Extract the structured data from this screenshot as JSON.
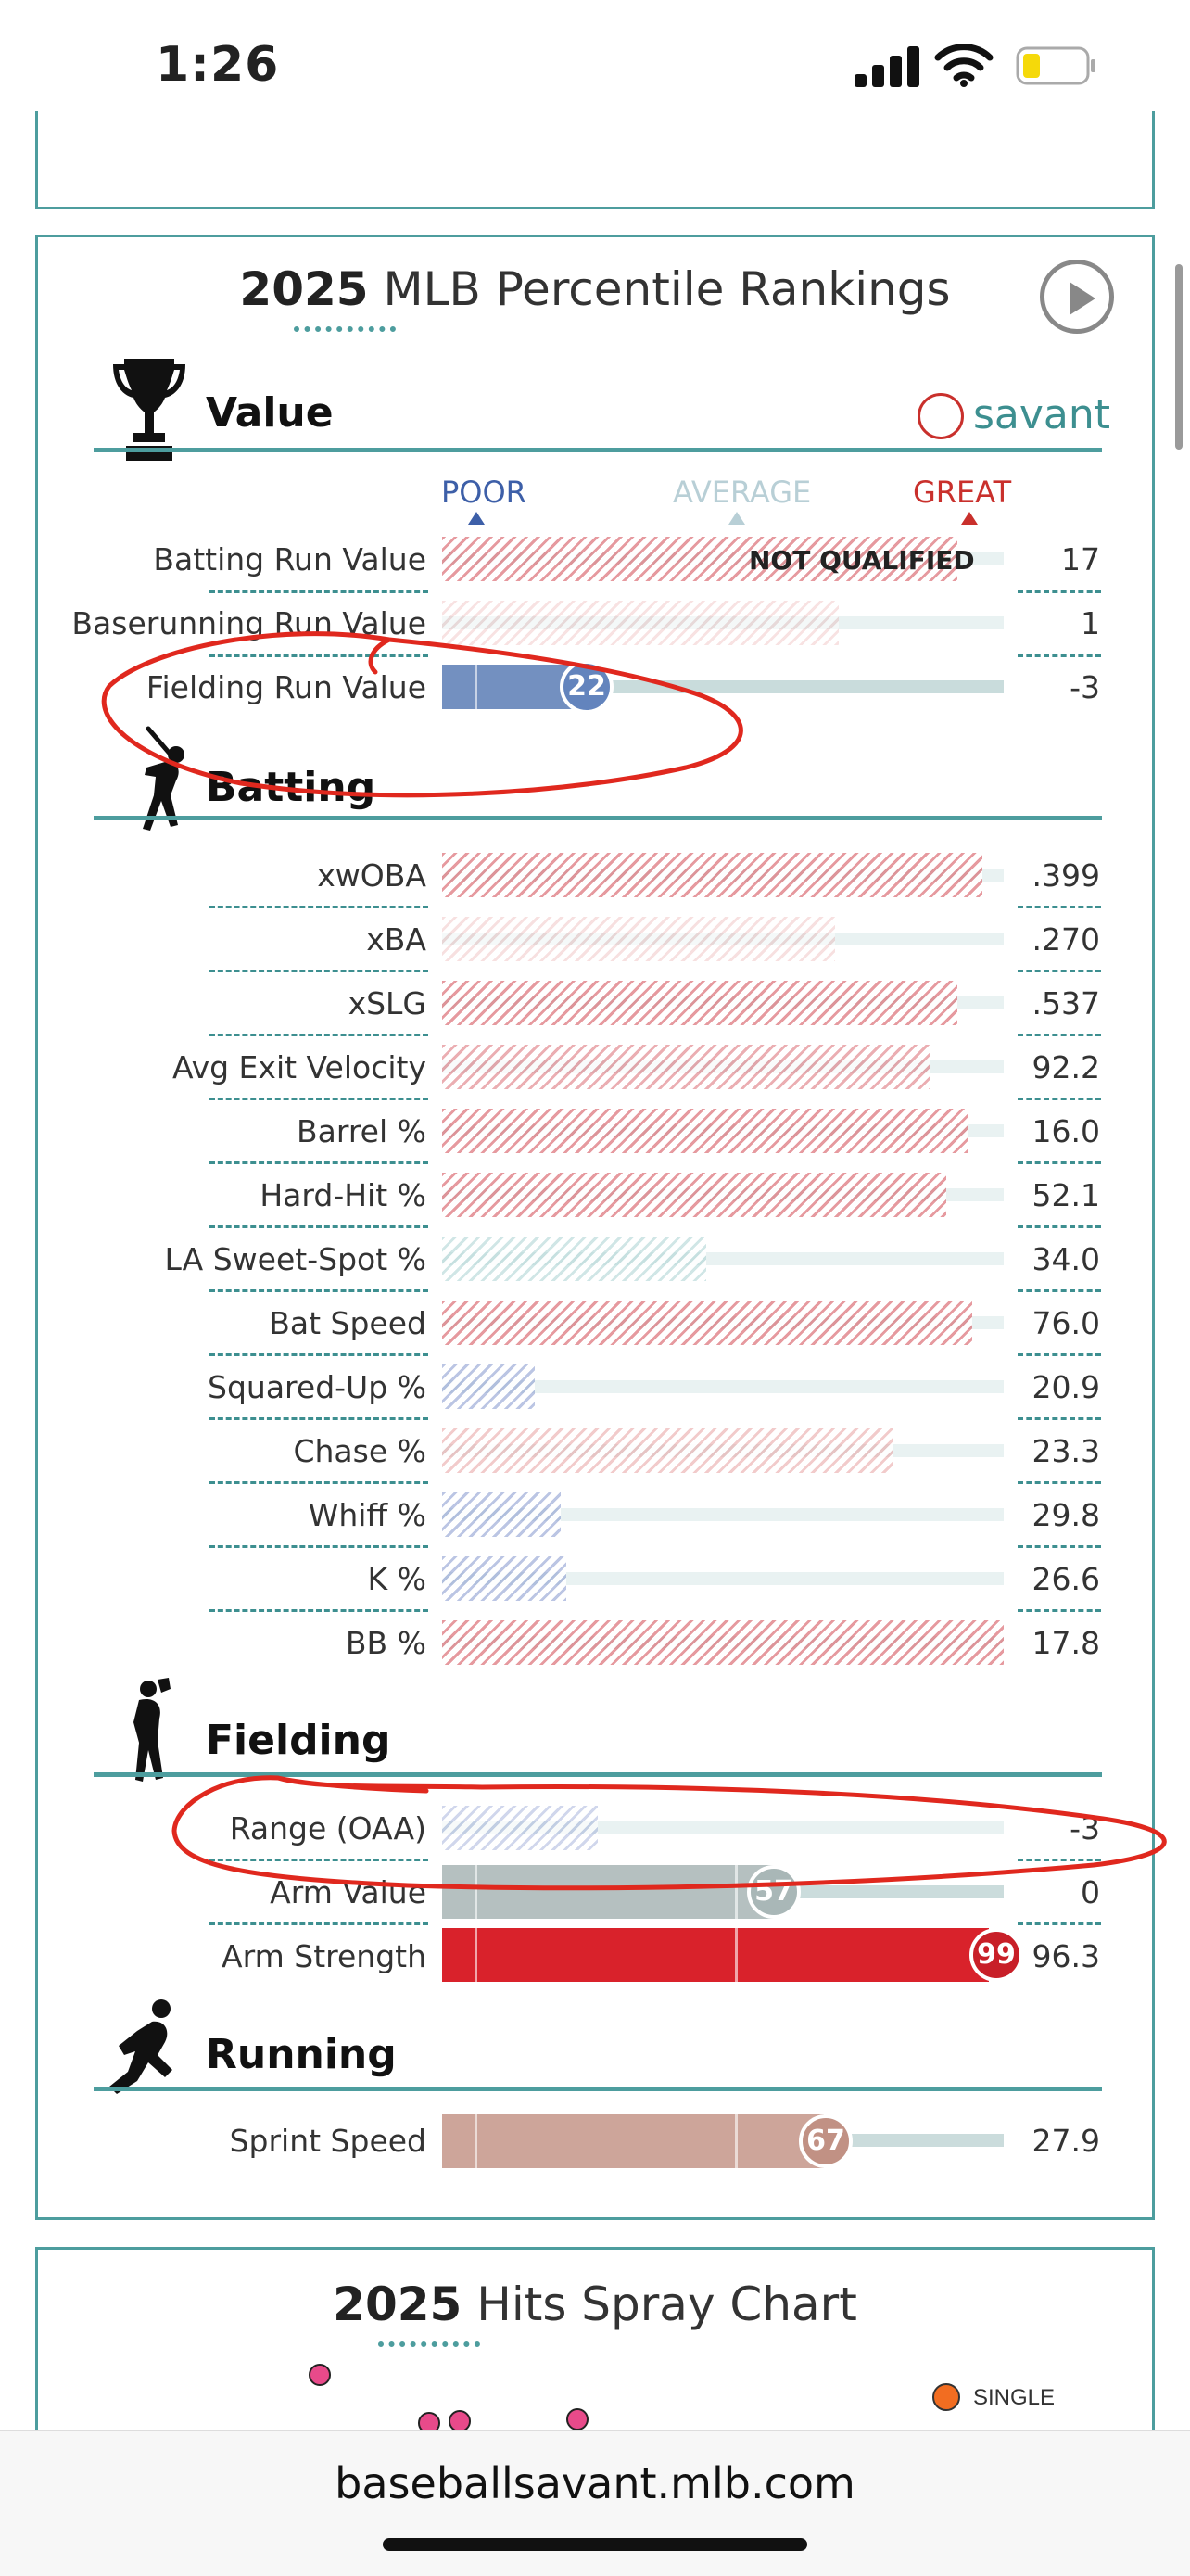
{
  "status_bar": {
    "time": "1:26"
  },
  "percentile_card": {
    "title_year": "2025",
    "title_text": "MLB Percentile Rankings",
    "savant_logo_text": "savant",
    "scale": {
      "poor": "POOR",
      "average": "AVERAGE",
      "great": "GREAT"
    },
    "sections": {
      "value": {
        "title": "Value",
        "rows": [
          {
            "label": "Batting Run Value",
            "value": "17",
            "percentile": 92,
            "note": "NOT QUALIFIED"
          },
          {
            "label": "Baserunning Run Value",
            "value": "1",
            "percentile": 70
          },
          {
            "label": "Fielding Run Value",
            "value": "-3",
            "percentile": 22,
            "bubble": "22"
          }
        ]
      },
      "batting": {
        "title": "Batting",
        "rows": [
          {
            "label": "xwOBA",
            "value": ".399",
            "percentile": 96
          },
          {
            "label": "xBA",
            "value": ".270",
            "percentile": 70
          },
          {
            "label": "xSLG",
            "value": ".537",
            "percentile": 92
          },
          {
            "label": "Avg Exit Velocity",
            "value": "92.2",
            "percentile": 87
          },
          {
            "label": "Barrel %",
            "value": "16.0",
            "percentile": 94
          },
          {
            "label": "Hard-Hit %",
            "value": "52.1",
            "percentile": 90
          },
          {
            "label": "LA Sweet-Spot %",
            "value": "34.0",
            "percentile": 47
          },
          {
            "label": "Bat Speed",
            "value": "76.0",
            "percentile": 95
          },
          {
            "label": "Squared-Up %",
            "value": "20.9",
            "percentile": 16
          },
          {
            "label": "Chase %",
            "value": "23.3",
            "percentile": 80
          },
          {
            "label": "Whiff %",
            "value": "29.8",
            "percentile": 21
          },
          {
            "label": "K %",
            "value": "26.6",
            "percentile": 22
          },
          {
            "label": "BB %",
            "value": "17.8",
            "percentile": 100
          }
        ]
      },
      "fielding": {
        "title": "Fielding",
        "rows": [
          {
            "label": "Range (OAA)",
            "value": "-3",
            "percentile": 28
          },
          {
            "label": "Arm Value",
            "value": "0",
            "percentile": 57,
            "bubble": "57"
          },
          {
            "label": "Arm Strength",
            "value": "96.3",
            "percentile": 99,
            "bubble": "99"
          }
        ]
      },
      "running": {
        "title": "Running",
        "rows": [
          {
            "label": "Sprint Speed",
            "value": "27.9",
            "percentile": 67,
            "bubble": "67"
          }
        ]
      }
    }
  },
  "spray_card": {
    "title_year": "2025",
    "title_text": "Hits Spray Chart",
    "legend_single": "SINGLE"
  },
  "browser": {
    "url": "baseballsavant.mlb.com"
  },
  "colors": {
    "teal": "#4d9d9e",
    "poor": "#3d5fa8",
    "average": "#b8cfd6",
    "great": "#c9302c",
    "fielding_rv": "#7390c0",
    "arm_value": "#b5c0c0",
    "arm_strength": "#d9222b",
    "sprint_speed": "#cda59a",
    "annotation": "#e0281e"
  }
}
